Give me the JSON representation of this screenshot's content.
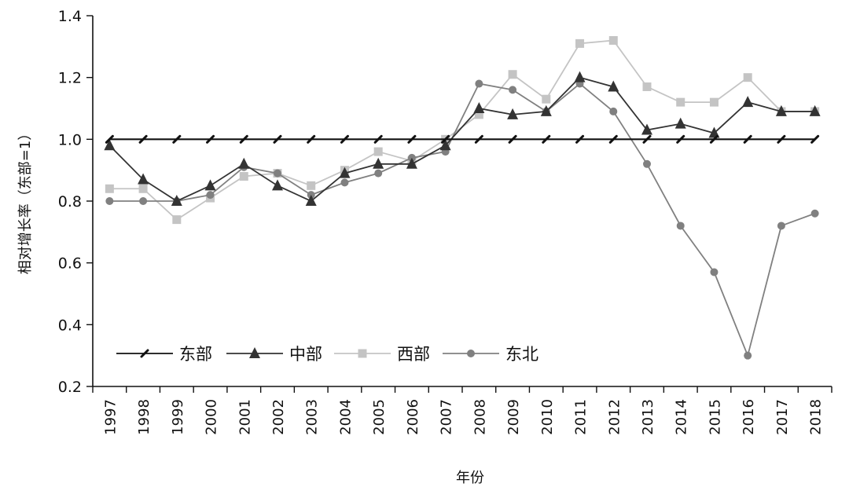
{
  "chart_data": {
    "type": "line",
    "ylabel": "相对增长率（东部=1）",
    "xlabel": "年份",
    "categories": [
      "1997",
      "1998",
      "1999",
      "2000",
      "2001",
      "2002",
      "2003",
      "2004",
      "2005",
      "2006",
      "2007",
      "2008",
      "2009",
      "2010",
      "2011",
      "2012",
      "2013",
      "2014",
      "2015",
      "2016",
      "2017",
      "2018"
    ],
    "ylim": [
      0.2,
      1.4
    ],
    "yticks": [
      0.2,
      0.4,
      0.6,
      0.8,
      1.0,
      1.2,
      1.4
    ],
    "ytick_labels": [
      "0.2",
      "0.4",
      "0.6",
      "0.8",
      "1.0",
      "1.2",
      "1.4"
    ],
    "grid": false,
    "legend_position": "bottom-left",
    "series": [
      {
        "name": "东部",
        "marker": "dash",
        "color": "#111111",
        "values": [
          1.0,
          1.0,
          1.0,
          1.0,
          1.0,
          1.0,
          1.0,
          1.0,
          1.0,
          1.0,
          1.0,
          1.0,
          1.0,
          1.0,
          1.0,
          1.0,
          1.0,
          1.0,
          1.0,
          1.0,
          1.0,
          1.0
        ]
      },
      {
        "name": "中部",
        "marker": "triangle",
        "color": "#333333",
        "values": [
          0.98,
          0.87,
          0.8,
          0.85,
          0.92,
          0.85,
          0.8,
          0.89,
          0.92,
          0.92,
          0.98,
          1.1,
          1.08,
          1.09,
          1.2,
          1.17,
          1.03,
          1.05,
          1.02,
          1.12,
          1.09,
          1.09
        ]
      },
      {
        "name": "西部",
        "marker": "square",
        "color": "#c4c4c4",
        "values": [
          0.84,
          0.84,
          0.74,
          0.81,
          0.88,
          0.89,
          0.85,
          0.9,
          0.96,
          0.93,
          1.0,
          1.08,
          1.21,
          1.13,
          1.31,
          1.32,
          1.17,
          1.12,
          1.12,
          1.2,
          1.09,
          1.09
        ]
      },
      {
        "name": "东北",
        "marker": "circle",
        "color": "#808080",
        "values": [
          0.8,
          0.8,
          0.8,
          0.82,
          0.91,
          0.89,
          0.82,
          0.86,
          0.89,
          0.94,
          0.96,
          1.18,
          1.16,
          1.09,
          1.18,
          1.09,
          0.92,
          0.72,
          0.57,
          0.3,
          0.72,
          0.76
        ]
      }
    ]
  }
}
